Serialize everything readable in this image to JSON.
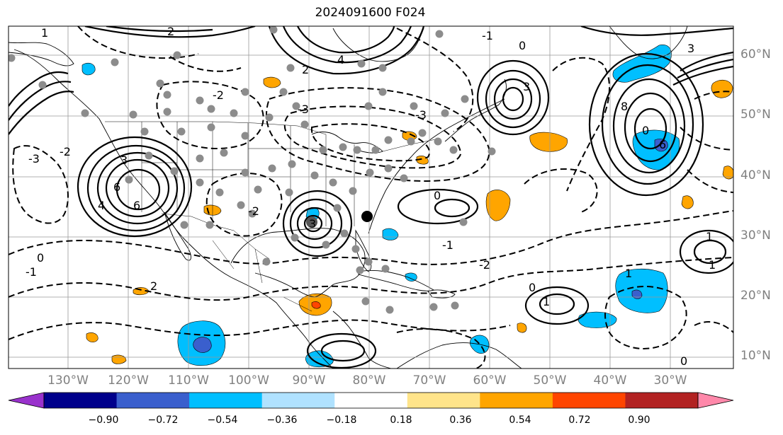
{
  "title": "2024091600 F024",
  "lat_labels": [
    "60°N",
    "50°N",
    "40°N",
    "30°N",
    "20°N",
    "10°N"
  ],
  "lon_labels": [
    "130°W",
    "120°W",
    "110°W",
    "100°W",
    "90°W",
    "80°W",
    "70°W",
    "60°W",
    "50°W",
    "40°W",
    "30°W"
  ],
  "contour_labels": [
    "0",
    "1",
    "2",
    "3",
    "4",
    "6",
    "8",
    "-1",
    "-2",
    "-3"
  ],
  "colorbar": {
    "ticks": [
      "−0.90",
      "−0.72",
      "−0.54",
      "−0.36",
      "−0.18",
      "0.18",
      "0.36",
      "0.54",
      "0.72",
      "0.90"
    ],
    "colors": [
      "#9932cc",
      "#00008b",
      "#3a5fcd",
      "#00bfff",
      "#b0e2ff",
      "#ffffff",
      "#ffe48a",
      "#ffa500",
      "#ff4500",
      "#b22222",
      "#ff88aa"
    ],
    "under_color": "#9932cc",
    "over_color": "#ff88aa"
  },
  "shade_colors": {
    "neg_light": "#00bfff",
    "neg_mid": "#3a5fcd",
    "pos_light": "#ffa500",
    "pos_dark": "#ff4500"
  },
  "gridlines": true
}
